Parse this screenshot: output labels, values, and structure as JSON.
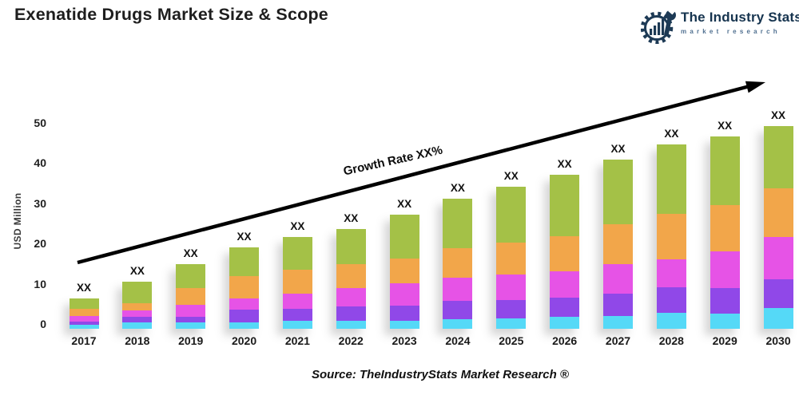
{
  "page_title": "Exenatide Drugs Market Size & Scope",
  "logo": {
    "name": "The Industry Stats",
    "tagline": "market research",
    "color": "#16344f",
    "tagline_color": "#517191"
  },
  "chart_data": {
    "type": "bar",
    "stacked": true,
    "title": "Exenatide Drugs Market Size & Scope",
    "ylabel": "USD Million",
    "xlabel": "",
    "yticks": [
      0,
      10,
      20,
      30,
      40,
      50
    ],
    "ylim": [
      0,
      52
    ],
    "grid": false,
    "legend_position": "none",
    "bar_value_label": "XX",
    "annotation": {
      "text": "Growth Rate XX%",
      "type": "trend-arrow",
      "color": "#000000"
    },
    "categories": [
      "2017",
      "2018",
      "2019",
      "2020",
      "2021",
      "2022",
      "2023",
      "2024",
      "2025",
      "2026",
      "2027",
      "2028",
      "2029",
      "2030"
    ],
    "series": [
      {
        "name": "Segment 1 (bottom, cyan)",
        "color": "#55d9f7",
        "values": [
          0.9,
          1.5,
          1.5,
          1.5,
          1.9,
          1.9,
          1.9,
          2.3,
          2.5,
          2.9,
          3.2,
          3.9,
          3.7,
          5.2
        ]
      },
      {
        "name": "Segment 2 (purple)",
        "color": "#9048e8",
        "values": [
          0.9,
          1.4,
          1.5,
          3.2,
          3.0,
          3.6,
          3.9,
          4.7,
          4.7,
          4.9,
          5.5,
          6.3,
          6.3,
          7.1
        ]
      },
      {
        "name": "Segment 3 (magenta)",
        "color": "#e653e6",
        "values": [
          1.3,
          1.7,
          3.0,
          2.8,
          3.9,
          4.5,
          5.4,
          5.7,
          6.3,
          6.5,
          7.3,
          7.1,
          9.3,
          10.5
        ]
      },
      {
        "name": "Segment 4 (orange)",
        "color": "#f2a64a",
        "values": [
          1.8,
          1.8,
          4.0,
          5.5,
          5.9,
          6.0,
          6.3,
          7.3,
          7.8,
          8.7,
          10.0,
          11.3,
          11.3,
          12.0
        ]
      },
      {
        "name": "Segment 5 (top, green)",
        "color": "#a4c147",
        "values": [
          2.6,
          5.2,
          6.0,
          7.1,
          8.1,
          8.8,
          10.9,
          12.3,
          14.0,
          15.3,
          16.0,
          17.1,
          17.1,
          15.5
        ]
      }
    ]
  },
  "source_caption": "Source: TheIndustryStats Market Research ®"
}
